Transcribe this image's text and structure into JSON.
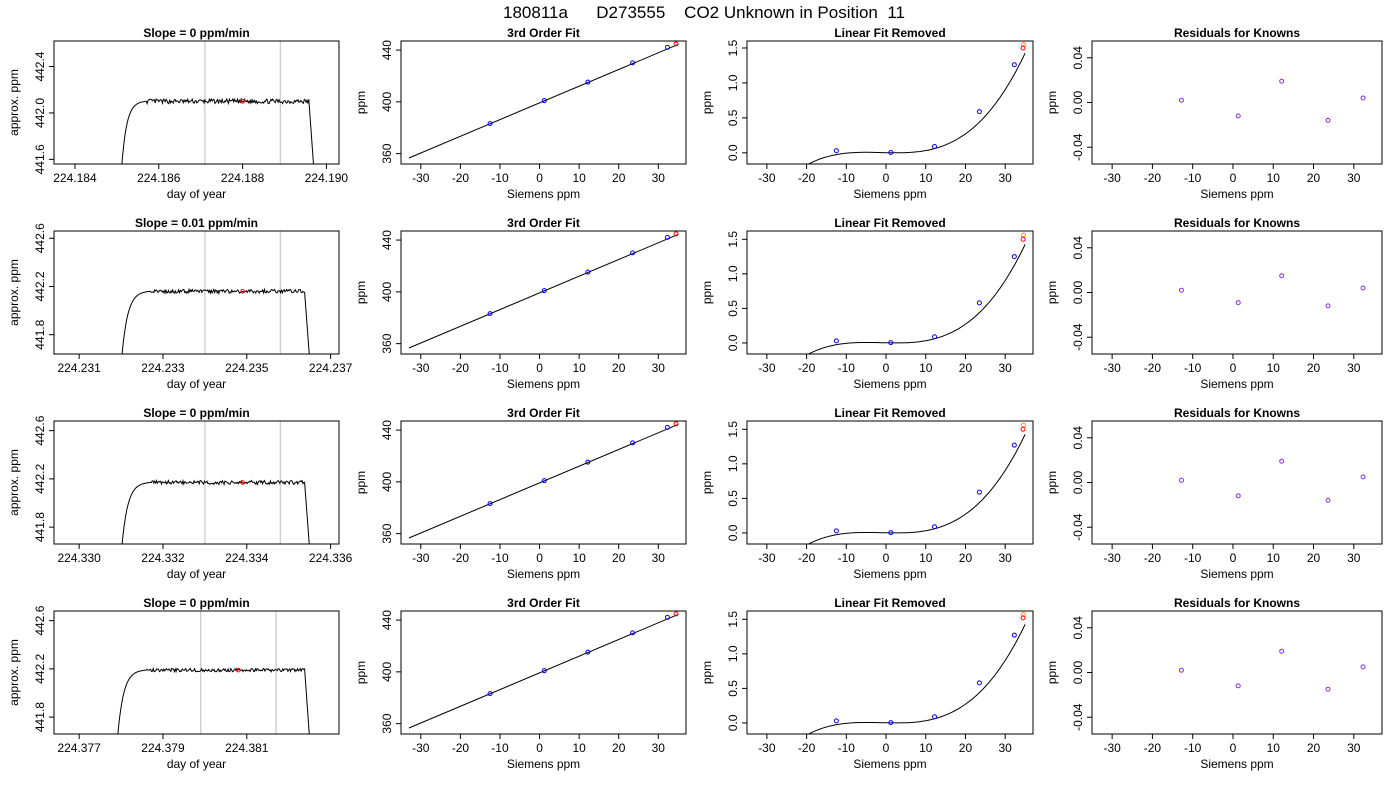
{
  "figure": {
    "title": "180811a      D273555    CO2 Unknown in Position  11",
    "colors": {
      "trace": "#000000",
      "vline": "#c8c8c8",
      "known": "#0000ff",
      "unknown": "#ff0000",
      "extra": "#ff9900",
      "residual": "#8a2be2"
    }
  },
  "chart_data": [
    {
      "type": "line",
      "title": "Slope =  0  ppm/min",
      "xlabel": "day of year",
      "ylabel": "approx. ppm",
      "xlim": [
        224.1835,
        224.1903
      ],
      "ylim": [
        441.56,
        442.62
      ],
      "xticks": [
        224.184,
        224.186,
        224.188,
        224.19
      ],
      "xtick_labels": [
        "224.184",
        "224.186",
        "224.188",
        "224.190"
      ],
      "yticks": [
        441.6,
        442.0,
        442.4
      ],
      "ytick_labels": [
        "441.6",
        "442.0",
        "442.4"
      ],
      "t_start": 224.1851,
      "t_end": 224.1897,
      "rise_end": 224.1857,
      "plateau": 442.1,
      "noise": 0.02,
      "vlines": [
        224.1871,
        224.1889
      ],
      "mark": {
        "x": 224.188,
        "y": 442.1
      }
    },
    {
      "type": "line",
      "title": "3rd Order Fit",
      "xlabel": "Siemens ppm",
      "ylabel": "ppm",
      "xlim": [
        -35,
        37
      ],
      "ylim": [
        352,
        447
      ],
      "xticks": [
        -30,
        -20,
        -10,
        0,
        10,
        20,
        30
      ],
      "yticks": [
        360,
        400,
        440
      ],
      "fit_range": [
        -33,
        35
      ],
      "fit_line": {
        "intercept": 399.2,
        "slope": 1.29
      },
      "points": [
        {
          "x": -12.5,
          "y": 383.2
        },
        {
          "x": 1.2,
          "y": 400.9
        },
        {
          "x": 12.2,
          "y": 415.2
        },
        {
          "x": 23.5,
          "y": 430.1
        },
        {
          "x": 32.3,
          "y": 442.1
        }
      ],
      "unknown": {
        "x": 34.5,
        "y": 444.8
      }
    },
    {
      "type": "line",
      "title": "Linear Fit Removed",
      "xlabel": "Siemens ppm",
      "ylabel": "ppm",
      "xlim": [
        -35,
        37
      ],
      "ylim": [
        -0.16,
        1.6
      ],
      "xticks": [
        -30,
        -20,
        -10,
        0,
        10,
        20,
        30
      ],
      "yticks": [
        0.0,
        0.5,
        1.0,
        1.5
      ],
      "ytick_labels": [
        "0.0",
        "0.5",
        "1.0",
        "1.5"
      ],
      "curve": {
        "range": [
          -33,
          35
        ],
        "c0": 0.002,
        "c1": -0.0012,
        "c2": 0.000115,
        "c3": 3.09e-05
      },
      "points": [
        {
          "x": -12.5,
          "y": 0.03
        },
        {
          "x": 1.2,
          "y": 0.005
        },
        {
          "x": 12.2,
          "y": 0.09
        },
        {
          "x": 23.5,
          "y": 0.59
        },
        {
          "x": 32.3,
          "y": 1.26
        }
      ],
      "unknown": {
        "x": 34.5,
        "y": 1.5
      },
      "extra": {
        "x": 34.6,
        "y": 1.55
      }
    },
    {
      "type": "scatter",
      "title": "Residuals for Knowns",
      "xlabel": "Siemens ppm",
      "ylabel": "ppm",
      "xlim": [
        -35,
        37
      ],
      "ylim": [
        -0.055,
        0.055
      ],
      "xticks": [
        -30,
        -20,
        -10,
        0,
        10,
        20,
        30
      ],
      "yticks": [
        -0.04,
        0.0,
        0.04
      ],
      "ytick_labels": [
        "-0.04",
        "0.00",
        "0.04"
      ],
      "points": [
        {
          "x": -12.8,
          "y": 0.002
        },
        {
          "x": 1.3,
          "y": -0.012
        },
        {
          "x": 12.1,
          "y": 0.019
        },
        {
          "x": 23.6,
          "y": -0.016
        },
        {
          "x": 32.3,
          "y": 0.004
        }
      ]
    },
    {
      "type": "line",
      "title": "Slope =  0.01  ppm/min",
      "xlabel": "day of year",
      "ylabel": "approx. ppm",
      "xlim": [
        224.2304,
        224.2372
      ],
      "ylim": [
        441.64,
        442.66
      ],
      "xticks": [
        224.231,
        224.233,
        224.235,
        224.237
      ],
      "xtick_labels": [
        "224.231",
        "224.233",
        "224.235",
        "224.237"
      ],
      "yticks": [
        441.8,
        442.2,
        442.6
      ],
      "ytick_labels": [
        "441.8",
        "442.2",
        "442.6"
      ],
      "t_start": 224.232,
      "t_end": 224.2365,
      "rise_end": 224.2327,
      "plateau": 442.16,
      "noise": 0.016,
      "vlines": [
        224.234,
        224.2358
      ],
      "mark": {
        "x": 224.2349,
        "y": 442.16
      }
    },
    {
      "type": "line",
      "title": "3rd Order Fit",
      "xlabel": "Siemens ppm",
      "ylabel": "ppm",
      "xlim": [
        -35,
        37
      ],
      "ylim": [
        352,
        447
      ],
      "xticks": [
        -30,
        -20,
        -10,
        0,
        10,
        20,
        30
      ],
      "yticks": [
        360,
        400,
        440
      ],
      "fit_range": [
        -33,
        35
      ],
      "fit_line": {
        "intercept": 399.2,
        "slope": 1.29
      },
      "points": [
        {
          "x": -12.5,
          "y": 383.2
        },
        {
          "x": 1.2,
          "y": 400.9
        },
        {
          "x": 12.2,
          "y": 415.2
        },
        {
          "x": 23.5,
          "y": 430.1
        },
        {
          "x": 32.3,
          "y": 442.1
        }
      ],
      "unknown": {
        "x": 34.5,
        "y": 444.8
      }
    },
    {
      "type": "line",
      "title": "Linear Fit Removed",
      "xlabel": "Siemens ppm",
      "ylabel": "ppm",
      "xlim": [
        -35,
        37
      ],
      "ylim": [
        -0.16,
        1.62
      ],
      "xticks": [
        -30,
        -20,
        -10,
        0,
        10,
        20,
        30
      ],
      "yticks": [
        0.0,
        0.5,
        1.0,
        1.5
      ],
      "ytick_labels": [
        "0.0",
        "0.5",
        "1.0",
        "1.5"
      ],
      "curve": {
        "range": [
          -33,
          35
        ],
        "c0": 0.002,
        "c1": -0.0012,
        "c2": 0.000115,
        "c3": 3.09e-05
      },
      "points": [
        {
          "x": -12.5,
          "y": 0.03
        },
        {
          "x": 1.2,
          "y": 0.005
        },
        {
          "x": 12.2,
          "y": 0.09
        },
        {
          "x": 23.5,
          "y": 0.58
        },
        {
          "x": 32.3,
          "y": 1.25
        }
      ],
      "unknown": {
        "x": 34.5,
        "y": 1.5
      },
      "extra": {
        "x": 34.6,
        "y": 1.56
      }
    },
    {
      "type": "scatter",
      "title": "Residuals for Knowns",
      "xlabel": "Siemens ppm",
      "ylabel": "ppm",
      "xlim": [
        -35,
        37
      ],
      "ylim": [
        -0.055,
        0.055
      ],
      "xticks": [
        -30,
        -20,
        -10,
        0,
        10,
        20,
        30
      ],
      "yticks": [
        -0.04,
        0.0,
        0.04
      ],
      "ytick_labels": [
        "-0.04",
        "0.00",
        "0.04"
      ],
      "points": [
        {
          "x": -12.8,
          "y": 0.002
        },
        {
          "x": 1.3,
          "y": -0.009
        },
        {
          "x": 12.1,
          "y": 0.015
        },
        {
          "x": 23.6,
          "y": -0.012
        },
        {
          "x": 32.3,
          "y": 0.004
        }
      ]
    },
    {
      "type": "line",
      "title": "Slope =  0  ppm/min",
      "xlabel": "day of year",
      "ylabel": "approx. ppm",
      "xlim": [
        224.3294,
        224.3362
      ],
      "ylim": [
        441.66,
        442.68
      ],
      "xticks": [
        224.33,
        224.332,
        224.334,
        224.336
      ],
      "xtick_labels": [
        "224.330",
        "224.332",
        "224.334",
        "224.336"
      ],
      "yticks": [
        441.8,
        442.2,
        442.6
      ],
      "ytick_labels": [
        "441.8",
        "442.2",
        "442.6"
      ],
      "t_start": 224.331,
      "t_end": 224.3355,
      "rise_end": 224.3317,
      "plateau": 442.17,
      "noise": 0.016,
      "vlines": [
        224.333,
        224.3348
      ],
      "mark": {
        "x": 224.3339,
        "y": 442.17
      }
    },
    {
      "type": "line",
      "title": "3rd Order Fit",
      "xlabel": "Siemens ppm",
      "ylabel": "ppm",
      "xlim": [
        -35,
        37
      ],
      "ylim": [
        352,
        447
      ],
      "xticks": [
        -30,
        -20,
        -10,
        0,
        10,
        20,
        30
      ],
      "yticks": [
        360,
        400,
        440
      ],
      "fit_range": [
        -33,
        35
      ],
      "fit_line": {
        "intercept": 399.2,
        "slope": 1.29
      },
      "points": [
        {
          "x": -12.5,
          "y": 383.2
        },
        {
          "x": 1.2,
          "y": 400.9
        },
        {
          "x": 12.2,
          "y": 415.2
        },
        {
          "x": 23.5,
          "y": 430.1
        },
        {
          "x": 32.3,
          "y": 442.1
        }
      ],
      "unknown": {
        "x": 34.5,
        "y": 444.8
      }
    },
    {
      "type": "line",
      "title": "Linear Fit Removed",
      "xlabel": "Siemens ppm",
      "ylabel": "ppm",
      "xlim": [
        -35,
        37
      ],
      "ylim": [
        -0.16,
        1.62
      ],
      "xticks": [
        -30,
        -20,
        -10,
        0,
        10,
        20,
        30
      ],
      "yticks": [
        0.0,
        0.5,
        1.0,
        1.5
      ],
      "ytick_labels": [
        "0.0",
        "0.5",
        "1.0",
        "1.5"
      ],
      "curve": {
        "range": [
          -33,
          35
        ],
        "c0": 0.002,
        "c1": -0.0012,
        "c2": 0.000115,
        "c3": 3.09e-05
      },
      "points": [
        {
          "x": -12.5,
          "y": 0.03
        },
        {
          "x": 1.2,
          "y": 0.005
        },
        {
          "x": 12.2,
          "y": 0.09
        },
        {
          "x": 23.5,
          "y": 0.59
        },
        {
          "x": 32.3,
          "y": 1.27
        }
      ],
      "unknown": {
        "x": 34.5,
        "y": 1.5
      },
      "extra": {
        "x": 34.6,
        "y": 1.56
      }
    },
    {
      "type": "scatter",
      "title": "Residuals for Knowns",
      "xlabel": "Siemens ppm",
      "ylabel": "ppm",
      "xlim": [
        -35,
        37
      ],
      "ylim": [
        -0.055,
        0.055
      ],
      "xticks": [
        -30,
        -20,
        -10,
        0,
        10,
        20,
        30
      ],
      "yticks": [
        -0.04,
        0.0,
        0.04
      ],
      "ytick_labels": [
        "-0.04",
        "0.00",
        "0.04"
      ],
      "points": [
        {
          "x": -12.8,
          "y": 0.002
        },
        {
          "x": 1.3,
          "y": -0.012
        },
        {
          "x": 12.1,
          "y": 0.019
        },
        {
          "x": 23.6,
          "y": -0.016
        },
        {
          "x": 32.3,
          "y": 0.005
        }
      ]
    },
    {
      "type": "line",
      "title": "Slope =  0  ppm/min",
      "xlabel": "day of year",
      "ylabel": "approx. ppm",
      "xlim": [
        224.3764,
        224.3832
      ],
      "ylim": [
        441.66,
        442.68
      ],
      "xticks": [
        224.377,
        224.379,
        224.381
      ],
      "xtick_labels": [
        "224.377",
        "224.379",
        "224.381"
      ],
      "yticks": [
        441.8,
        442.2,
        442.6
      ],
      "ytick_labels": [
        "441.8",
        "442.2",
        "442.6"
      ],
      "t_start": 224.3779,
      "t_end": 224.3825,
      "rise_end": 224.3786,
      "plateau": 442.19,
      "noise": 0.014,
      "vlines": [
        224.3799,
        224.3817
      ],
      "mark": {
        "x": 224.3808,
        "y": 442.19
      }
    },
    {
      "type": "line",
      "title": "3rd Order Fit",
      "xlabel": "Siemens ppm",
      "ylabel": "ppm",
      "xlim": [
        -35,
        37
      ],
      "ylim": [
        352,
        447
      ],
      "xticks": [
        -30,
        -20,
        -10,
        0,
        10,
        20,
        30
      ],
      "yticks": [
        360,
        400,
        440
      ],
      "fit_range": [
        -33,
        35
      ],
      "fit_line": {
        "intercept": 399.2,
        "slope": 1.29
      },
      "points": [
        {
          "x": -12.5,
          "y": 383.2
        },
        {
          "x": 1.2,
          "y": 400.9
        },
        {
          "x": 12.2,
          "y": 415.2
        },
        {
          "x": 23.5,
          "y": 430.1
        },
        {
          "x": 32.3,
          "y": 442.1
        }
      ],
      "unknown": {
        "x": 34.5,
        "y": 444.8
      }
    },
    {
      "type": "line",
      "title": "Linear Fit Removed",
      "xlabel": "Siemens ppm",
      "ylabel": "ppm",
      "xlim": [
        -35,
        37
      ],
      "ylim": [
        -0.16,
        1.62
      ],
      "xticks": [
        -30,
        -20,
        -10,
        0,
        10,
        20,
        30
      ],
      "yticks": [
        0.0,
        0.5,
        1.0,
        1.5
      ],
      "ytick_labels": [
        "0.0",
        "0.5",
        "1.0",
        "1.5"
      ],
      "curve": {
        "range": [
          -33,
          35
        ],
        "c0": 0.002,
        "c1": -0.0012,
        "c2": 0.000115,
        "c3": 3.09e-05
      },
      "points": [
        {
          "x": -12.5,
          "y": 0.03
        },
        {
          "x": 1.2,
          "y": 0.005
        },
        {
          "x": 12.2,
          "y": 0.09
        },
        {
          "x": 23.5,
          "y": 0.58
        },
        {
          "x": 32.3,
          "y": 1.27
        }
      ],
      "unknown": {
        "x": 34.5,
        "y": 1.52
      },
      "extra": {
        "x": 34.6,
        "y": 1.57
      }
    },
    {
      "type": "scatter",
      "title": "Residuals for Knowns",
      "xlabel": "Siemens ppm",
      "ylabel": "ppm",
      "xlim": [
        -35,
        37
      ],
      "ylim": [
        -0.055,
        0.055
      ],
      "xticks": [
        -30,
        -20,
        -10,
        0,
        10,
        20,
        30
      ],
      "yticks": [
        -0.04,
        0.0,
        0.04
      ],
      "ytick_labels": [
        "-0.04",
        "0.00",
        "0.04"
      ],
      "points": [
        {
          "x": -12.8,
          "y": 0.002
        },
        {
          "x": 1.3,
          "y": -0.012
        },
        {
          "x": 12.1,
          "y": 0.019
        },
        {
          "x": 23.6,
          "y": -0.015
        },
        {
          "x": 32.3,
          "y": 0.005
        }
      ]
    }
  ]
}
